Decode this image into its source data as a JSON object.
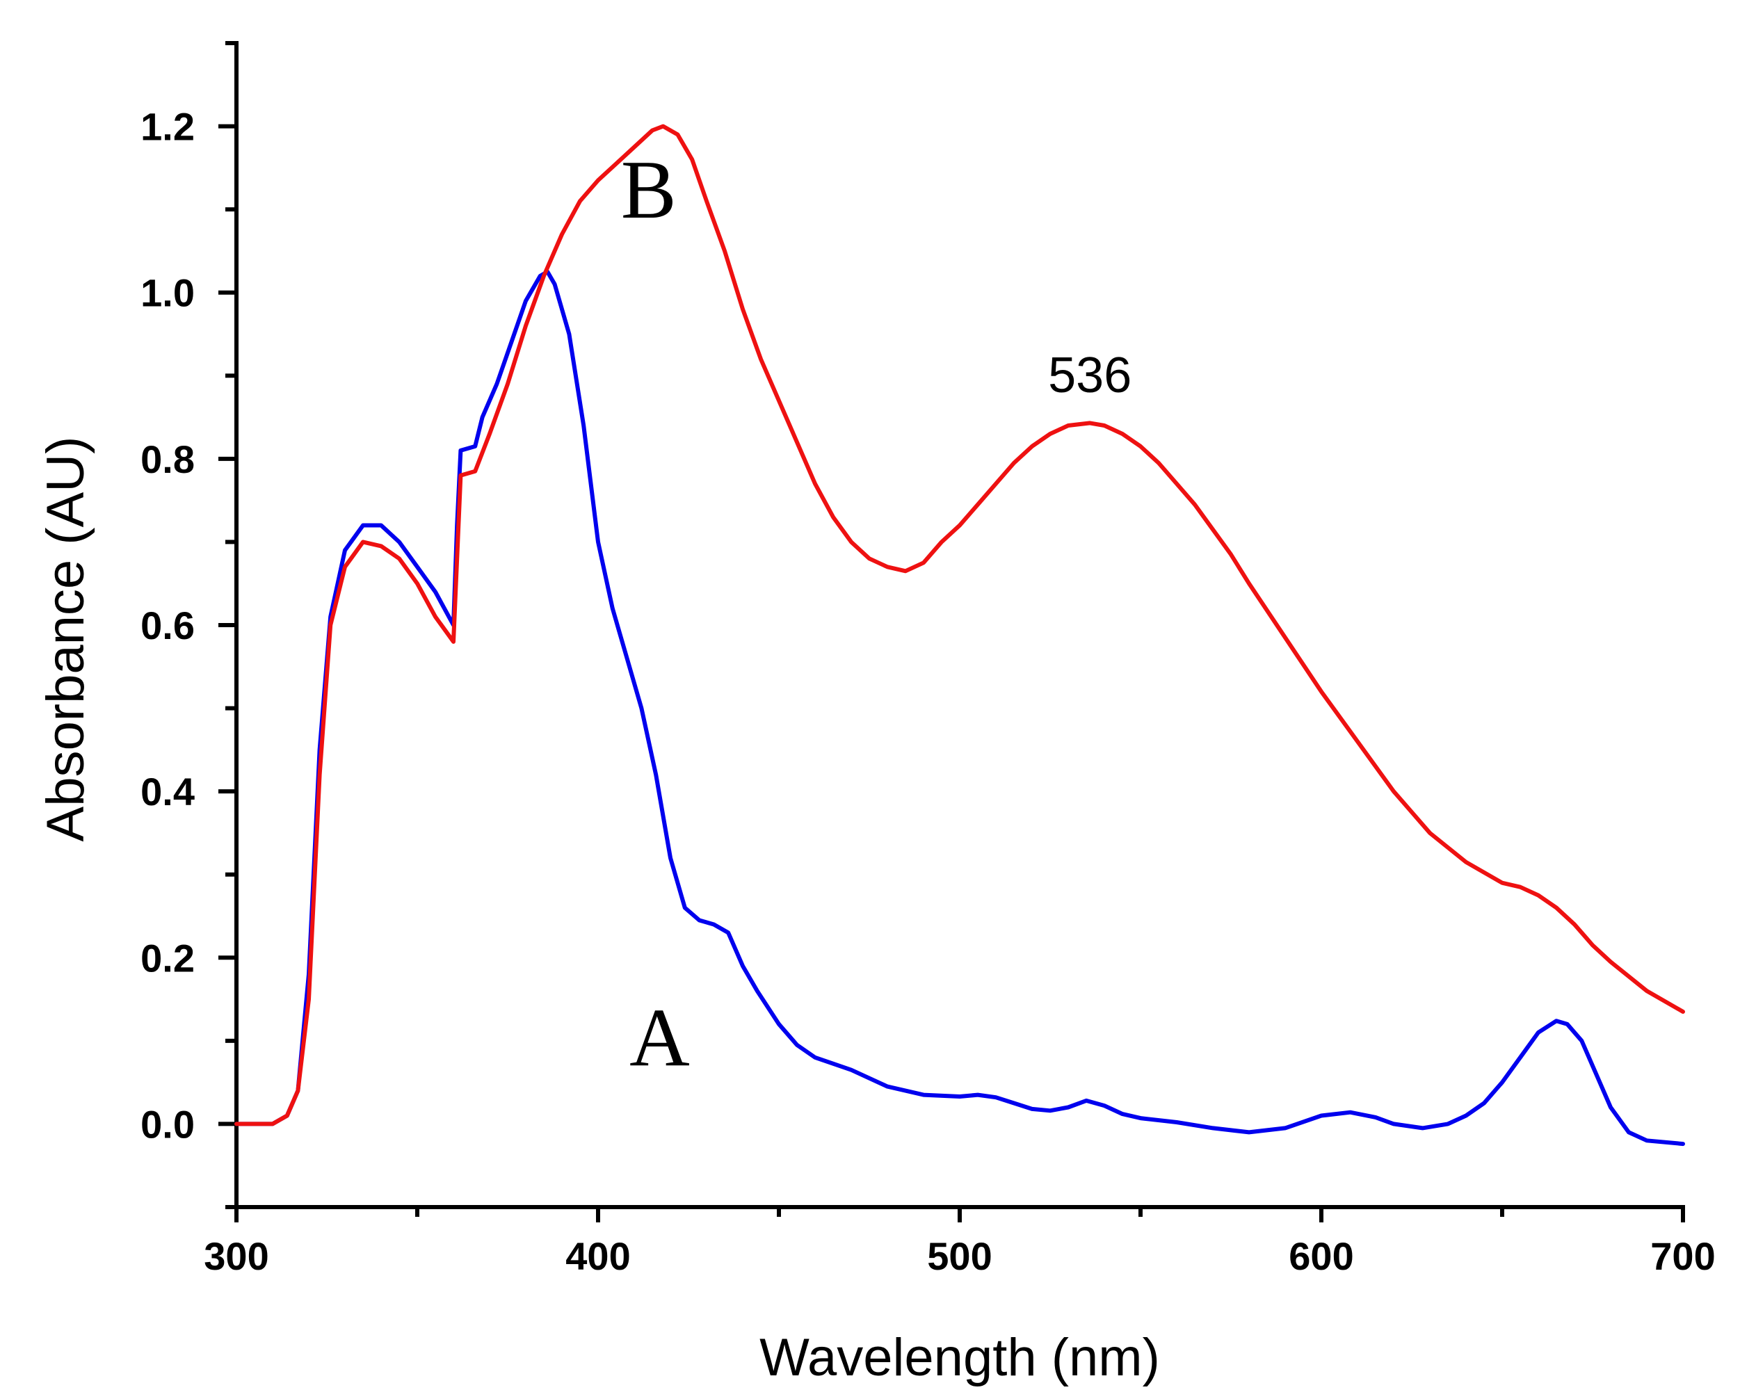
{
  "chart_data": {
    "type": "line",
    "title": "",
    "xlabel": "Wavelength (nm)",
    "ylabel": "Absorbance (AU)",
    "xlim": [
      300,
      700
    ],
    "ylim": [
      -0.1,
      1.3
    ],
    "x_ticks": [
      300,
      400,
      500,
      600,
      700
    ],
    "x_tick_labels": [
      "300",
      "400",
      "500",
      "600",
      "700"
    ],
    "x_minor_ticks": [
      350,
      450,
      550,
      650
    ],
    "y_ticks": [
      0.0,
      0.2,
      0.4,
      0.6,
      0.8,
      1.0,
      1.2
    ],
    "y_tick_labels": [
      "0.0",
      "0.2",
      "0.4",
      "0.6",
      "0.8",
      "1.0",
      "1.2"
    ],
    "y_minor_ticks": [
      -0.1,
      0.1,
      0.3,
      0.5,
      0.7,
      0.9,
      1.1,
      1.3
    ],
    "grid": false,
    "series": [
      {
        "name": "A",
        "color": "#0000ee",
        "points": [
          [
            300,
            0.0
          ],
          [
            305,
            0.0
          ],
          [
            310,
            0.0
          ],
          [
            314,
            0.01
          ],
          [
            317,
            0.04
          ],
          [
            320,
            0.18
          ],
          [
            323,
            0.45
          ],
          [
            326,
            0.61
          ],
          [
            330,
            0.69
          ],
          [
            335,
            0.72
          ],
          [
            340,
            0.72
          ],
          [
            345,
            0.7
          ],
          [
            350,
            0.67
          ],
          [
            355,
            0.64
          ],
          [
            360,
            0.6
          ],
          [
            361,
            0.72
          ],
          [
            362,
            0.81
          ],
          [
            366,
            0.815
          ],
          [
            368,
            0.85
          ],
          [
            372,
            0.89
          ],
          [
            376,
            0.94
          ],
          [
            380,
            0.99
          ],
          [
            384,
            1.02
          ],
          [
            386,
            1.025
          ],
          [
            388,
            1.01
          ],
          [
            392,
            0.95
          ],
          [
            396,
            0.84
          ],
          [
            400,
            0.7
          ],
          [
            404,
            0.62
          ],
          [
            408,
            0.56
          ],
          [
            412,
            0.5
          ],
          [
            416,
            0.42
          ],
          [
            420,
            0.32
          ],
          [
            424,
            0.26
          ],
          [
            428,
            0.245
          ],
          [
            432,
            0.24
          ],
          [
            436,
            0.23
          ],
          [
            440,
            0.19
          ],
          [
            444,
            0.16
          ],
          [
            450,
            0.12
          ],
          [
            455,
            0.095
          ],
          [
            460,
            0.08
          ],
          [
            470,
            0.065
          ],
          [
            480,
            0.045
          ],
          [
            490,
            0.035
          ],
          [
            500,
            0.033
          ],
          [
            505,
            0.035
          ],
          [
            510,
            0.032
          ],
          [
            515,
            0.025
          ],
          [
            520,
            0.018
          ],
          [
            525,
            0.016
          ],
          [
            530,
            0.02
          ],
          [
            535,
            0.028
          ],
          [
            540,
            0.022
          ],
          [
            545,
            0.012
          ],
          [
            550,
            0.007
          ],
          [
            560,
            0.002
          ],
          [
            570,
            -0.005
          ],
          [
            580,
            -0.01
          ],
          [
            590,
            -0.005
          ],
          [
            600,
            0.01
          ],
          [
            608,
            0.014
          ],
          [
            615,
            0.008
          ],
          [
            620,
            0.0
          ],
          [
            628,
            -0.005
          ],
          [
            635,
            0.0
          ],
          [
            640,
            0.01
          ],
          [
            645,
            0.025
          ],
          [
            650,
            0.05
          ],
          [
            655,
            0.08
          ],
          [
            660,
            0.11
          ],
          [
            665,
            0.124
          ],
          [
            668,
            0.12
          ],
          [
            672,
            0.1
          ],
          [
            676,
            0.06
          ],
          [
            680,
            0.02
          ],
          [
            685,
            -0.01
          ],
          [
            690,
            -0.02
          ],
          [
            700,
            -0.024
          ]
        ]
      },
      {
        "name": "B",
        "color": "#ee1111",
        "points": [
          [
            300,
            0.0
          ],
          [
            305,
            0.0
          ],
          [
            310,
            0.0
          ],
          [
            314,
            0.01
          ],
          [
            317,
            0.04
          ],
          [
            320,
            0.15
          ],
          [
            323,
            0.42
          ],
          [
            326,
            0.6
          ],
          [
            330,
            0.67
          ],
          [
            335,
            0.7
          ],
          [
            340,
            0.695
          ],
          [
            345,
            0.68
          ],
          [
            350,
            0.65
          ],
          [
            355,
            0.61
          ],
          [
            360,
            0.58
          ],
          [
            361,
            0.68
          ],
          [
            362,
            0.78
          ],
          [
            366,
            0.785
          ],
          [
            370,
            0.83
          ],
          [
            375,
            0.89
          ],
          [
            380,
            0.96
          ],
          [
            385,
            1.02
          ],
          [
            390,
            1.07
          ],
          [
            395,
            1.11
          ],
          [
            400,
            1.135
          ],
          [
            405,
            1.155
          ],
          [
            410,
            1.175
          ],
          [
            415,
            1.195
          ],
          [
            418,
            1.2
          ],
          [
            422,
            1.19
          ],
          [
            426,
            1.16
          ],
          [
            430,
            1.11
          ],
          [
            435,
            1.05
          ],
          [
            440,
            0.98
          ],
          [
            445,
            0.92
          ],
          [
            450,
            0.87
          ],
          [
            455,
            0.82
          ],
          [
            460,
            0.77
          ],
          [
            465,
            0.73
          ],
          [
            470,
            0.7
          ],
          [
            475,
            0.68
          ],
          [
            480,
            0.67
          ],
          [
            485,
            0.665
          ],
          [
            490,
            0.675
          ],
          [
            495,
            0.7
          ],
          [
            500,
            0.72
          ],
          [
            505,
            0.745
          ],
          [
            510,
            0.77
          ],
          [
            515,
            0.795
          ],
          [
            520,
            0.815
          ],
          [
            525,
            0.83
          ],
          [
            530,
            0.84
          ],
          [
            536,
            0.843
          ],
          [
            540,
            0.84
          ],
          [
            545,
            0.83
          ],
          [
            550,
            0.815
          ],
          [
            555,
            0.795
          ],
          [
            560,
            0.77
          ],
          [
            565,
            0.745
          ],
          [
            570,
            0.715
          ],
          [
            575,
            0.685
          ],
          [
            580,
            0.65
          ],
          [
            590,
            0.585
          ],
          [
            600,
            0.52
          ],
          [
            610,
            0.46
          ],
          [
            620,
            0.4
          ],
          [
            630,
            0.35
          ],
          [
            640,
            0.315
          ],
          [
            650,
            0.29
          ],
          [
            655,
            0.285
          ],
          [
            660,
            0.275
          ],
          [
            665,
            0.26
          ],
          [
            670,
            0.24
          ],
          [
            675,
            0.215
          ],
          [
            680,
            0.195
          ],
          [
            690,
            0.16
          ],
          [
            700,
            0.135
          ]
        ]
      }
    ],
    "series_labels": [
      {
        "text": "A",
        "x": 417,
        "y": 0.07
      },
      {
        "text": "B",
        "x": 414,
        "y": 1.09
      }
    ],
    "annotations": [
      {
        "text": "536",
        "x": 536,
        "y": 0.88
      }
    ]
  }
}
